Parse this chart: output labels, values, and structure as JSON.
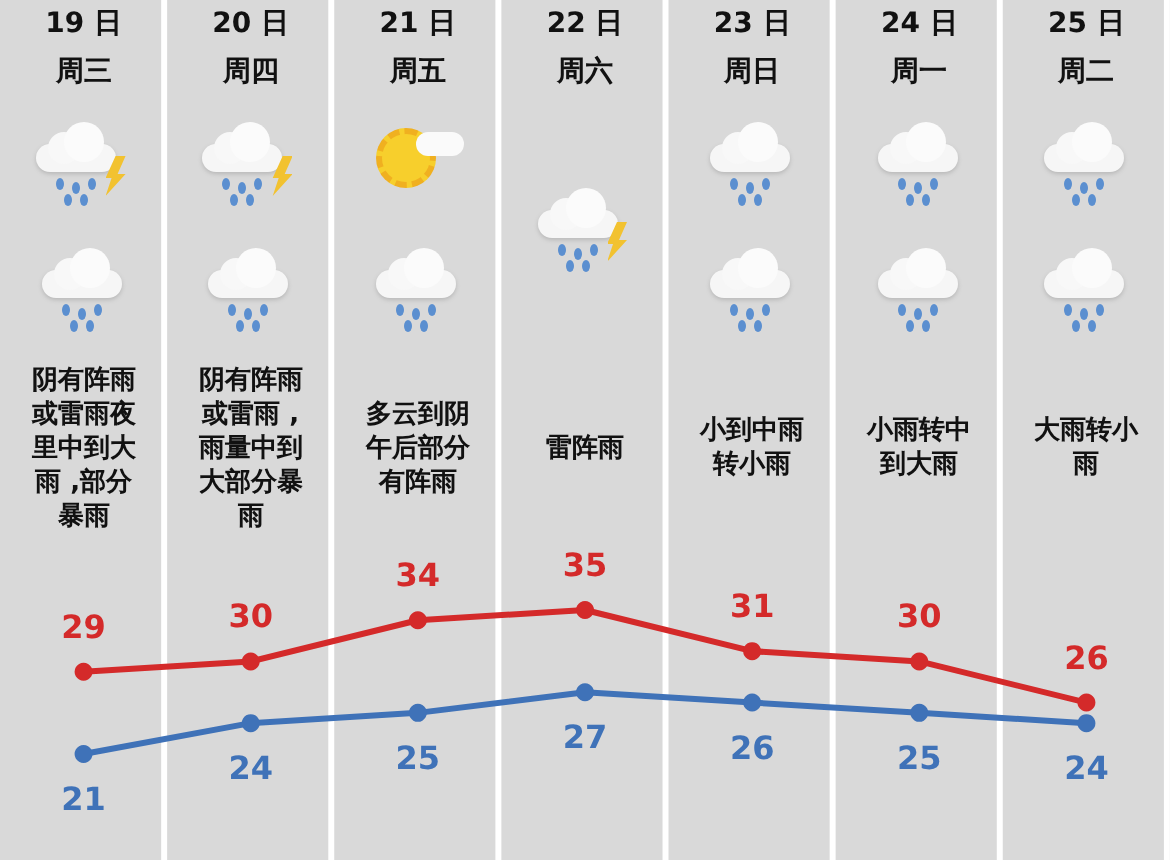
{
  "chart_data": {
    "type": "line",
    "categories": [
      "19 日周三",
      "20 日周四",
      "21 日周五",
      "22 日周六",
      "23 日周日",
      "24 日周一",
      "25 日周二"
    ],
    "series": [
      {
        "color": "#d42a2a",
        "values": [
          29,
          30,
          34,
          35,
          31,
          30,
          26
        ]
      },
      {
        "color": "#3f72b8",
        "values": [
          21,
          24,
          25,
          27,
          26,
          25,
          24
        ]
      }
    ],
    "annotations": [
      "阴有阵雨或雷雨夜里中到大雨 ,部分暴雨",
      "阴有阵雨或雷雨 ,雨量中到大部分暴雨",
      "多云到阴午后部分有阵雨",
      "雷阵雨",
      "小到中雨转小雨",
      "小雨转中到大雨",
      "大雨转小雨"
    ],
    "data_labels": true,
    "marker": "circle",
    "line_style": "solid"
  }
}
